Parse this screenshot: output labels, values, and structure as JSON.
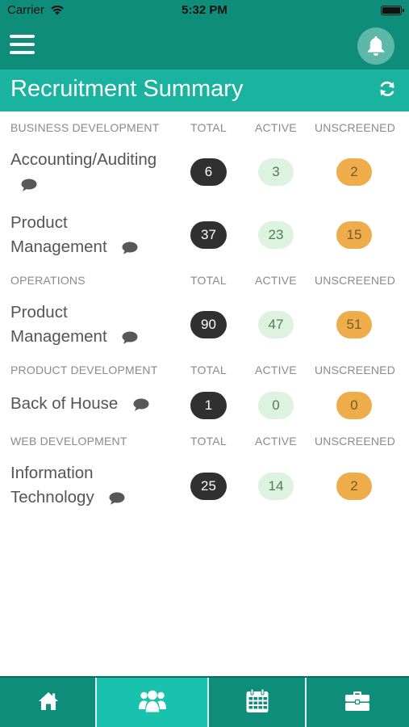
{
  "status_bar": {
    "carrier": "Carrier",
    "time": "5:32 PM"
  },
  "colors": {
    "header": "#0e8d7a",
    "title_bar": "#19b3a0",
    "tab_selected": "#19c2ac",
    "total": "#303030",
    "active": "#ddf2df",
    "unscreened": "#eeac4b"
  },
  "header": {
    "menu_icon": "hamburger-icon",
    "bell_icon": "bell-icon"
  },
  "title_bar": {
    "title": "Recruitment Summary",
    "refresh_icon": "refresh-icon"
  },
  "columns": {
    "total": "TOTAL",
    "active": "ACTIVE",
    "unscreened": "UNSCREENED"
  },
  "sections": [
    {
      "name": "BUSINESS DEVELOPMENT",
      "rows": [
        {
          "label": "Accounting/Auditing",
          "total": "6",
          "active": "3",
          "unscreened": "2"
        },
        {
          "label": "Product Management",
          "total": "37",
          "active": "23",
          "unscreened": "15"
        }
      ]
    },
    {
      "name": "OPERATIONS",
      "rows": [
        {
          "label": "Product Management",
          "total": "90",
          "active": "47",
          "unscreened": "51"
        }
      ]
    },
    {
      "name": "PRODUCT DEVELOPMENT",
      "rows": [
        {
          "label": "Back of House",
          "total": "1",
          "active": "0",
          "unscreened": "0"
        }
      ]
    },
    {
      "name": "WEB DEVELOPMENT",
      "rows": [
        {
          "label": "Information Technology",
          "total": "25",
          "active": "14",
          "unscreened": "2"
        }
      ]
    }
  ],
  "tabs": [
    {
      "icon": "home-icon",
      "selected": false
    },
    {
      "icon": "users-icon",
      "selected": true
    },
    {
      "icon": "calendar-icon",
      "selected": false
    },
    {
      "icon": "briefcase-icon",
      "selected": false
    }
  ]
}
